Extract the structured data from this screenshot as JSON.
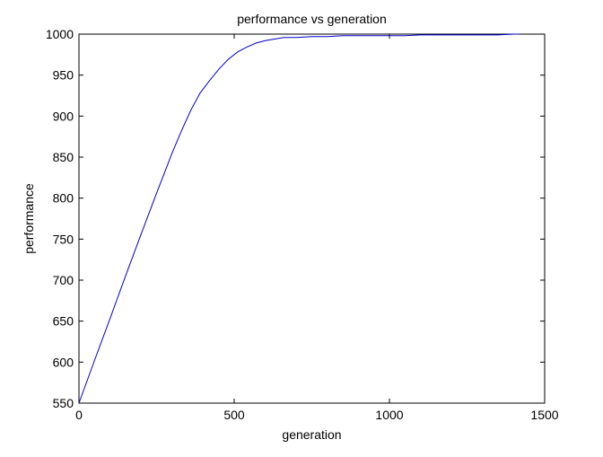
{
  "chart_data": {
    "type": "line",
    "title": "performance vs generation",
    "xlabel": "generation",
    "ylabel": "performance",
    "xlim": [
      0,
      1500
    ],
    "ylim": [
      550,
      1000
    ],
    "xticks": [
      0,
      500,
      1000,
      1500
    ],
    "yticks": [
      550,
      600,
      650,
      700,
      750,
      800,
      850,
      900,
      950,
      1000
    ],
    "grid": false,
    "legend": "none",
    "series": [
      {
        "color": "#0000cc",
        "x": [
          0,
          50,
          100,
          150,
          200,
          250,
          300,
          330,
          360,
          390,
          420,
          450,
          480,
          510,
          540,
          570,
          600,
          630,
          660,
          700,
          750,
          800,
          850,
          900,
          950,
          1000,
          1050,
          1100,
          1150,
          1200,
          1250,
          1300,
          1350,
          1400,
          1420
        ],
        "y": [
          550,
          602,
          653,
          705,
          756,
          806,
          855,
          882,
          907,
          928,
          943,
          957,
          969,
          978,
          984,
          989,
          992,
          994,
          996,
          996,
          997,
          997,
          998,
          998,
          998,
          998,
          998,
          999,
          999,
          999,
          999,
          999,
          999,
          1000,
          1000
        ]
      }
    ]
  }
}
